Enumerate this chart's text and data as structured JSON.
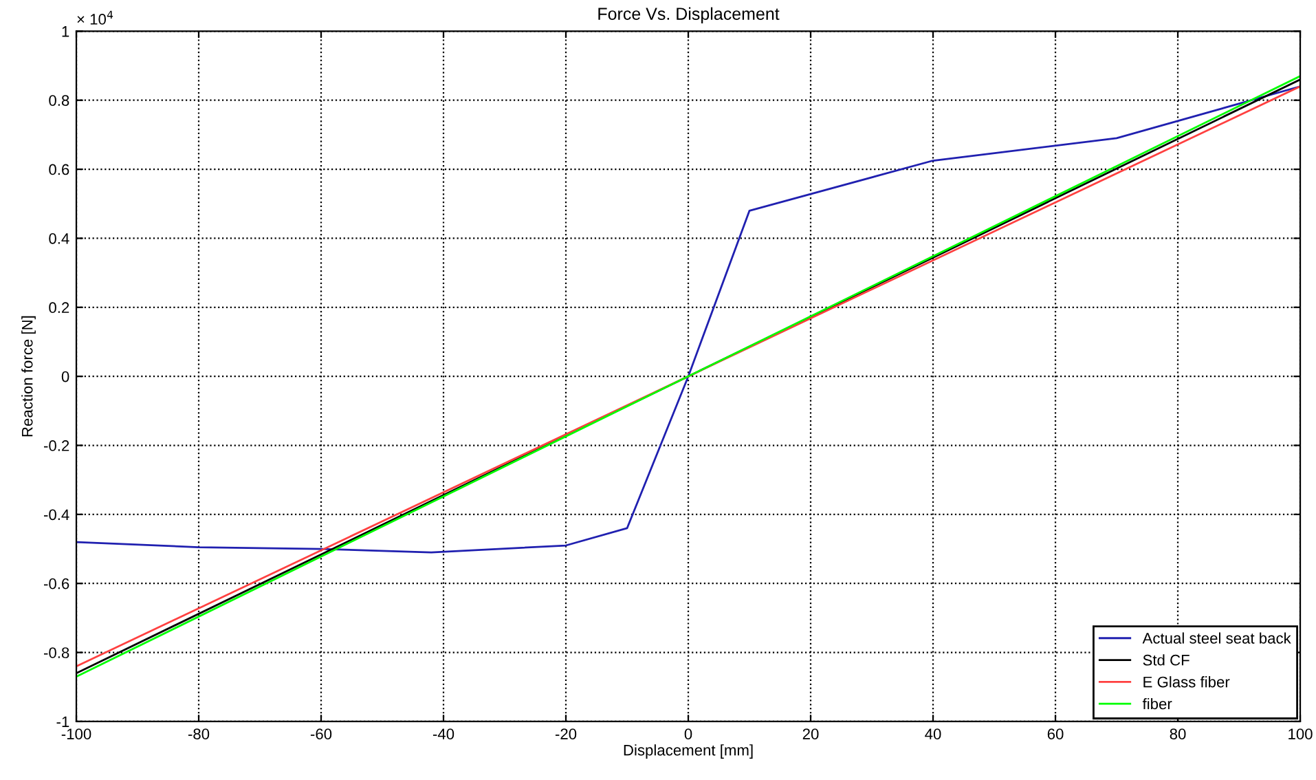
{
  "chart_data": {
    "type": "line",
    "title": "Force Vs. Displacement",
    "xlabel": "Displacement [mm]",
    "ylabel": "Reaction force [N]",
    "annotations": [
      "× 10$^{4}$"
    ],
    "xlim": [
      -100,
      100
    ],
    "xticks": [
      -100,
      -80,
      -60,
      -40,
      -20,
      0,
      20,
      40,
      60,
      80,
      100
    ],
    "ylim": [
      -1,
      1
    ],
    "yticks": [
      -1,
      -0.8,
      -0.6,
      -0.4,
      -0.2,
      0,
      0.2,
      0.4,
      0.6,
      0.8,
      1
    ],
    "grid": true,
    "legend": "bottom right",
    "line_style": "solid",
    "marker": "none",
    "series": [
      {
        "name": "Actual steel seat back",
        "color": "#2020b0",
        "x": [
          -100,
          -80,
          -60,
          -42,
          -20,
          -10,
          0,
          10,
          40,
          70,
          100
        ],
        "values": [
          -0.48,
          -0.495,
          -0.5,
          -0.51,
          -0.49,
          -0.44,
          0,
          0.48,
          0.625,
          0.69,
          0.84
        ]
      },
      {
        "name": "Std CF",
        "color": "#000000",
        "x": [
          -100,
          100
        ],
        "values": [
          -0.86,
          0.86
        ]
      },
      {
        "name": "E Glass fiber",
        "color": "#ff4040",
        "x": [
          -100,
          100
        ],
        "values": [
          -0.84,
          0.84
        ]
      },
      {
        "name": "fiber",
        "color": "#00ff00",
        "x": [
          -100,
          100
        ],
        "values": [
          -0.87,
          0.87
        ]
      }
    ]
  }
}
